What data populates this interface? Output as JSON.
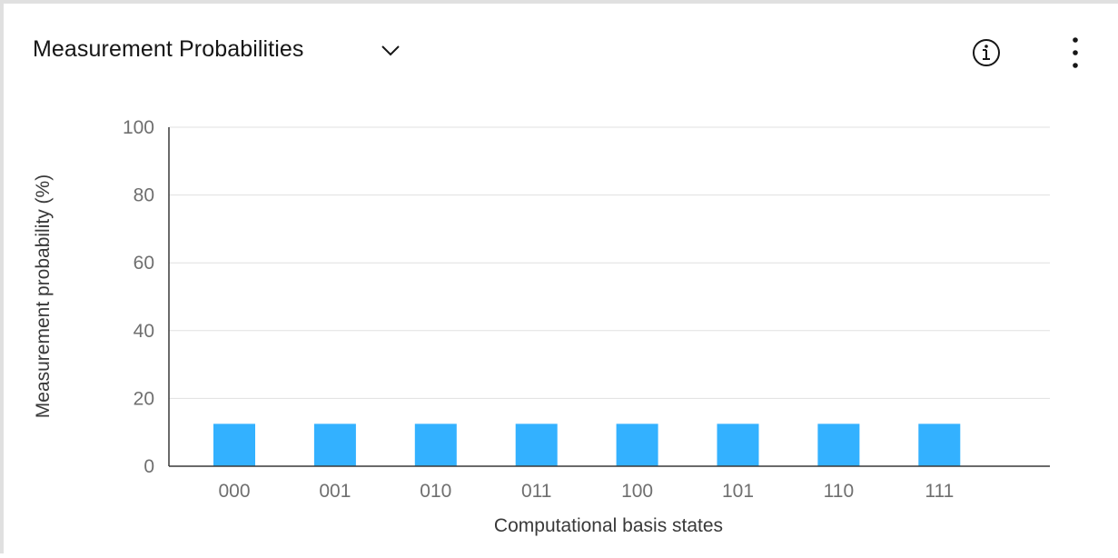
{
  "header": {
    "title": "Measurement Probabilities",
    "dropdown_icon": "chevron-down-icon",
    "info_icon": "information-icon",
    "overflow_icon": "overflow-menu-vertical-icon"
  },
  "colors": {
    "bar": "#33b1ff",
    "grid": "#e0e0e0",
    "axis": "#393939",
    "tick_text": "#6f6f6f"
  },
  "chart_data": {
    "type": "bar",
    "categories": [
      "000",
      "001",
      "010",
      "011",
      "100",
      "101",
      "110",
      "111"
    ],
    "values": [
      12.5,
      12.5,
      12.5,
      12.5,
      12.5,
      12.5,
      12.5,
      12.5
    ],
    "xlabel": "Computational basis states",
    "ylabel": "Measurement probability (%)",
    "ylim": [
      0,
      100
    ],
    "yticks": [
      0,
      20,
      40,
      60,
      80,
      100
    ],
    "grid": true
  }
}
